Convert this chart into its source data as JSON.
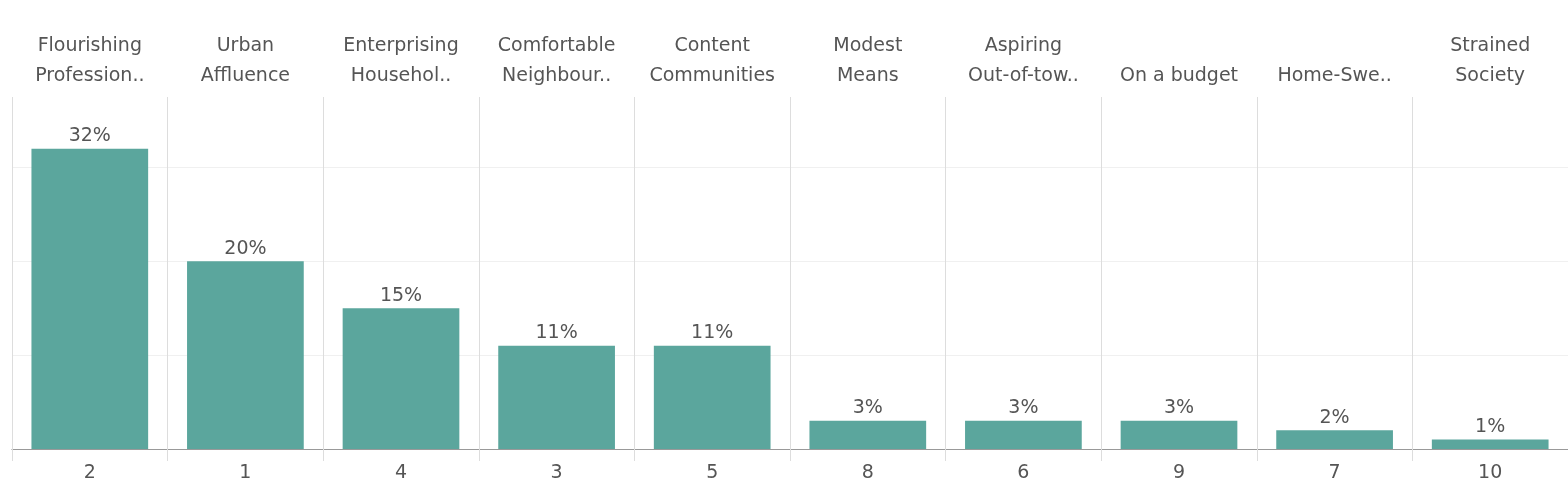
{
  "chart_data": {
    "type": "bar",
    "categories": [
      "Flourishing\nProfession..",
      "Urban\nAffluence",
      "Enterprising\nHousehol..",
      "Comfortable\nNeighbour..",
      "Content\nCommunities",
      "Modest\nMeans",
      "Aspiring\nOut-of-tow..",
      "On a budget",
      "Home-Swe..",
      "Strained\nSociety"
    ],
    "values": [
      32,
      20,
      15,
      11,
      11,
      3,
      3,
      3,
      2,
      1
    ],
    "value_labels": [
      "32%",
      "20%",
      "15%",
      "11%",
      "11%",
      "3%",
      "3%",
      "3%",
      "2%",
      "1%"
    ],
    "color": "#5ba69d",
    "ylim": [
      0,
      37.5
    ],
    "yticks": [
      {
        "value": 10,
        "label": null
      },
      {
        "value": 20,
        "label": null
      },
      {
        "value": 30,
        "label": null
      }
    ],
    "tick_labels": "x",
    "grid": true,
    "annotations": [
      "2",
      "1",
      "4",
      "3",
      "5",
      "8",
      "6",
      "9",
      "7",
      "10"
    ]
  }
}
